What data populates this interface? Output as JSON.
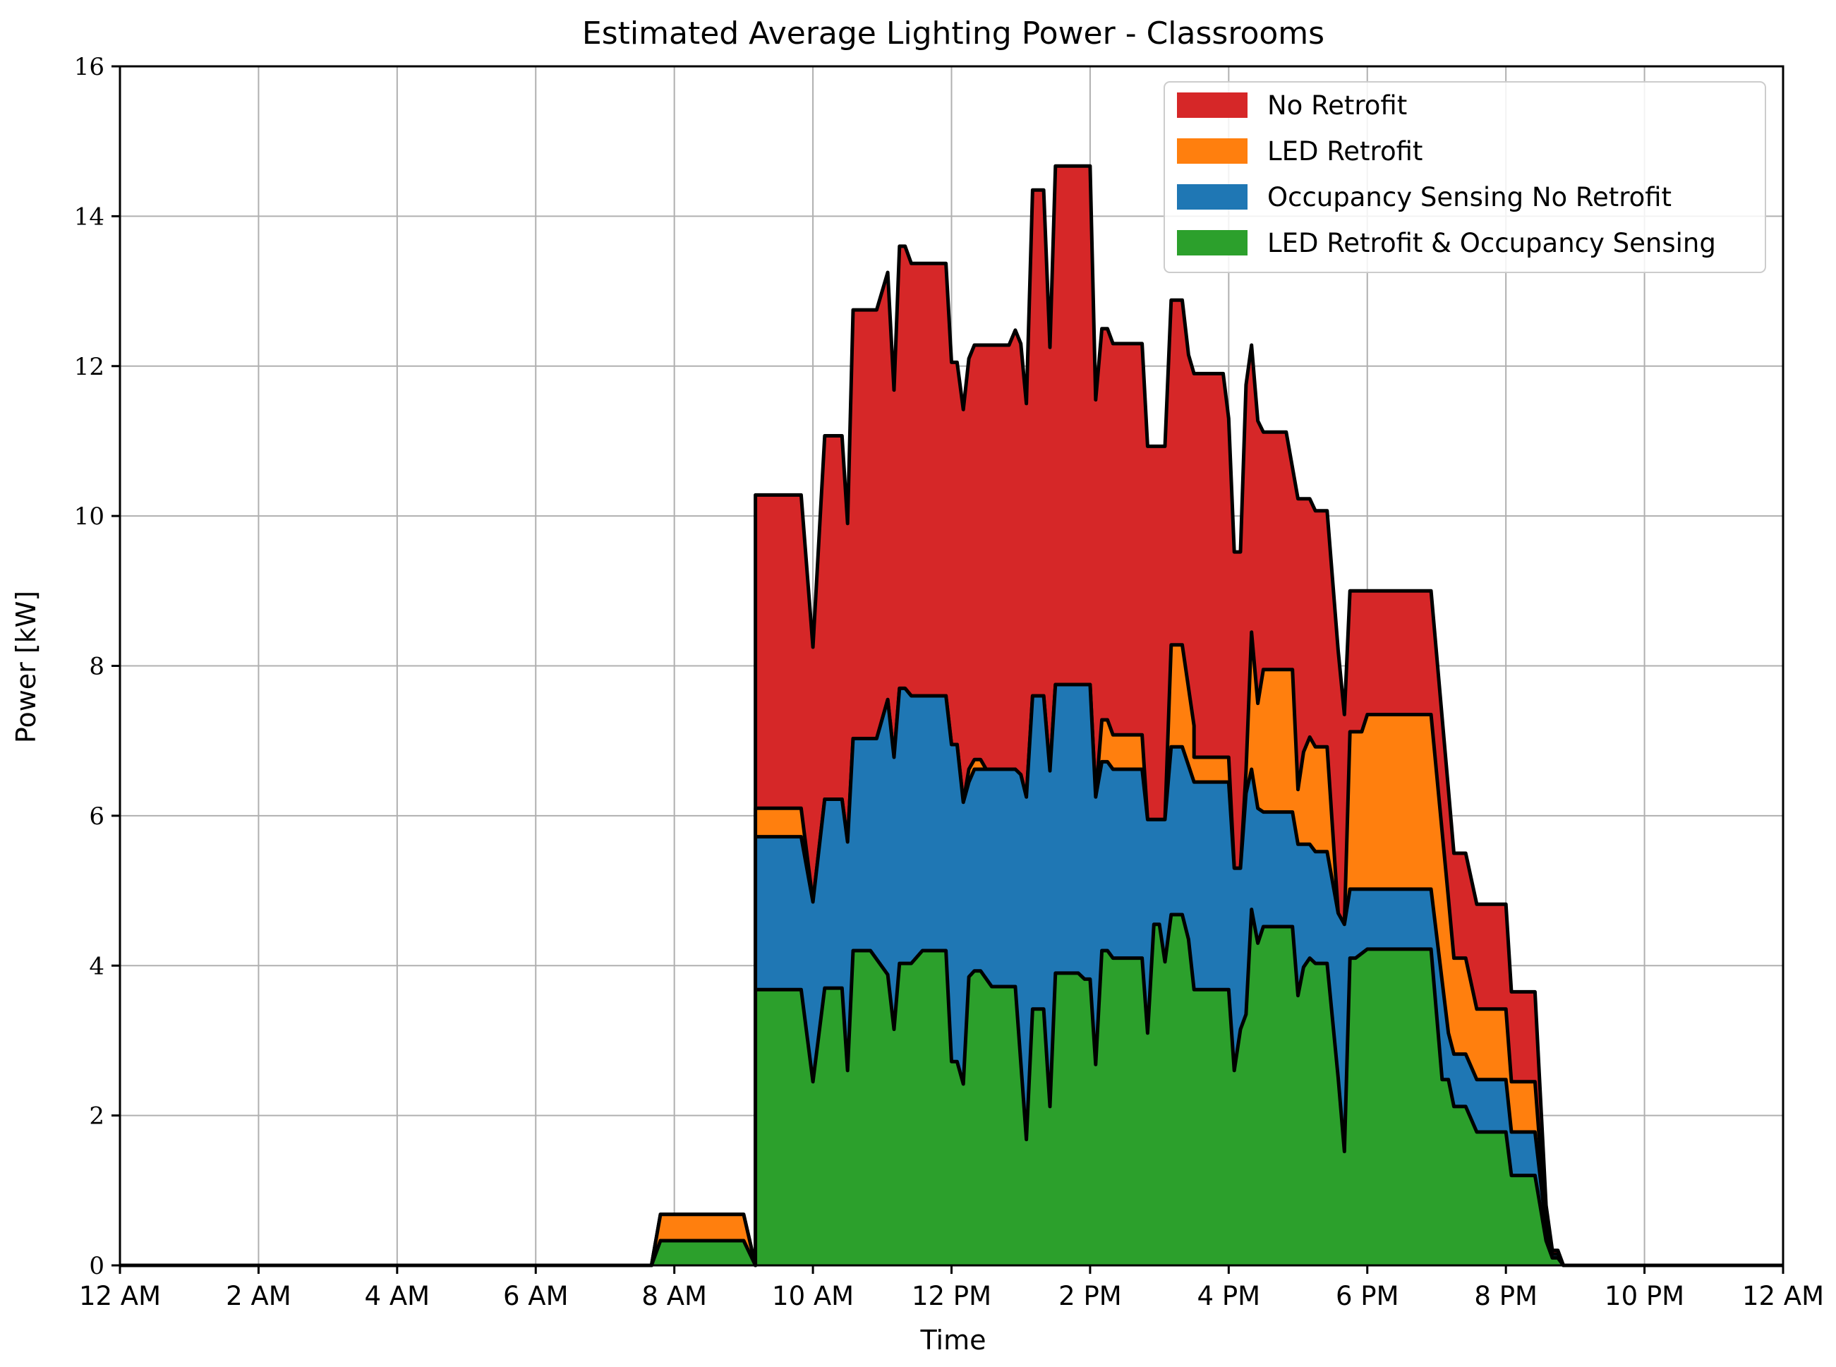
{
  "chart_data": {
    "type": "area",
    "stacked": false,
    "title": "Estimated Average Lighting Power - Classrooms",
    "xlabel": "Time",
    "ylabel": "Power [kW]",
    "xlim": [
      0,
      24
    ],
    "ylim": [
      0,
      16
    ],
    "x_ticks": [
      0,
      2,
      4,
      6,
      8,
      10,
      12,
      14,
      16,
      18,
      20,
      22,
      24
    ],
    "x_tick_labels": [
      "12 AM",
      "2 AM",
      "4 AM",
      "6 AM",
      "8 AM",
      "10 AM",
      "12 PM",
      "2 PM",
      "4 PM",
      "6 PM",
      "8 PM",
      "10 PM",
      "12 AM"
    ],
    "y_ticks": [
      0,
      2,
      4,
      6,
      8,
      10,
      12,
      14,
      16
    ],
    "y_tick_labels": [
      "0",
      "2",
      "4",
      "6",
      "8",
      "10",
      "12",
      "14",
      "16"
    ],
    "grid": true,
    "legend_position": "top-right",
    "series": [
      {
        "name": "No Retrofit",
        "color": "#d62728",
        "points": [
          [
            0,
            0
          ],
          [
            7.67,
            0
          ],
          [
            7.8,
            0.68
          ],
          [
            9.0,
            0.68
          ],
          [
            9.17,
            0
          ],
          [
            9.17,
            10.28
          ],
          [
            9.83,
            10.28
          ],
          [
            10.0,
            8.25
          ],
          [
            10.17,
            11.07
          ],
          [
            10.42,
            11.07
          ],
          [
            10.5,
            9.9
          ],
          [
            10.58,
            12.75
          ],
          [
            10.92,
            12.75
          ],
          [
            11.08,
            13.25
          ],
          [
            11.17,
            11.68
          ],
          [
            11.25,
            13.6
          ],
          [
            11.33,
            13.6
          ],
          [
            11.42,
            13.37
          ],
          [
            11.92,
            13.37
          ],
          [
            12.0,
            12.05
          ],
          [
            12.08,
            12.05
          ],
          [
            12.17,
            11.42
          ],
          [
            12.25,
            12.1
          ],
          [
            12.33,
            12.28
          ],
          [
            12.83,
            12.28
          ],
          [
            12.92,
            12.48
          ],
          [
            13.0,
            12.3
          ],
          [
            13.08,
            11.5
          ],
          [
            13.17,
            14.35
          ],
          [
            13.33,
            14.35
          ],
          [
            13.42,
            12.25
          ],
          [
            13.5,
            14.67
          ],
          [
            14.0,
            14.67
          ],
          [
            14.08,
            11.55
          ],
          [
            14.17,
            12.5
          ],
          [
            14.25,
            12.5
          ],
          [
            14.33,
            12.3
          ],
          [
            14.75,
            12.3
          ],
          [
            14.83,
            10.93
          ],
          [
            15.08,
            10.93
          ],
          [
            15.17,
            12.88
          ],
          [
            15.33,
            12.88
          ],
          [
            15.42,
            12.15
          ],
          [
            15.5,
            11.9
          ],
          [
            15.92,
            11.9
          ],
          [
            16.0,
            11.3
          ],
          [
            16.08,
            9.52
          ],
          [
            16.17,
            9.52
          ],
          [
            16.25,
            11.75
          ],
          [
            16.33,
            12.28
          ],
          [
            16.42,
            11.27
          ],
          [
            16.5,
            11.12
          ],
          [
            16.83,
            11.12
          ],
          [
            17.0,
            10.23
          ],
          [
            17.17,
            10.23
          ],
          [
            17.25,
            10.07
          ],
          [
            17.42,
            10.07
          ],
          [
            17.58,
            8.2
          ],
          [
            17.67,
            7.35
          ],
          [
            17.75,
            9.0
          ],
          [
            18.92,
            9.0
          ],
          [
            19.17,
            6.35
          ],
          [
            19.25,
            5.5
          ],
          [
            19.42,
            5.5
          ],
          [
            19.58,
            4.82
          ],
          [
            20.0,
            4.82
          ],
          [
            20.08,
            3.65
          ],
          [
            20.42,
            3.65
          ],
          [
            20.58,
            0.8
          ],
          [
            20.67,
            0.2
          ],
          [
            20.75,
            0.2
          ],
          [
            20.83,
            0
          ],
          [
            24,
            0
          ]
        ]
      },
      {
        "name": "LED Retrofit",
        "color": "#ff7f0e",
        "points": [
          [
            0,
            0
          ],
          [
            7.67,
            0
          ],
          [
            7.8,
            0.68
          ],
          [
            9.0,
            0.68
          ],
          [
            9.17,
            0
          ],
          [
            9.17,
            6.1
          ],
          [
            9.83,
            6.1
          ],
          [
            10.0,
            4.85
          ],
          [
            10.17,
            6.22
          ],
          [
            10.42,
            6.22
          ],
          [
            10.5,
            5.65
          ],
          [
            10.58,
            7.03
          ],
          [
            10.92,
            7.03
          ],
          [
            11.08,
            7.55
          ],
          [
            11.17,
            6.78
          ],
          [
            11.25,
            7.7
          ],
          [
            11.33,
            7.7
          ],
          [
            11.42,
            7.6
          ],
          [
            11.92,
            7.6
          ],
          [
            12.0,
            6.95
          ],
          [
            12.08,
            6.95
          ],
          [
            12.17,
            6.18
          ],
          [
            12.25,
            6.62
          ],
          [
            12.33,
            6.75
          ],
          [
            12.42,
            6.75
          ],
          [
            12.5,
            6.62
          ],
          [
            12.92,
            6.62
          ],
          [
            13.0,
            6.55
          ],
          [
            13.08,
            6.25
          ],
          [
            13.17,
            7.6
          ],
          [
            13.33,
            7.6
          ],
          [
            13.42,
            6.6
          ],
          [
            13.5,
            7.75
          ],
          [
            14.0,
            7.75
          ],
          [
            14.08,
            6.25
          ],
          [
            14.17,
            7.28
          ],
          [
            14.25,
            7.28
          ],
          [
            14.33,
            7.08
          ],
          [
            14.75,
            7.08
          ],
          [
            14.83,
            5.95
          ],
          [
            15.08,
            5.95
          ],
          [
            15.17,
            8.28
          ],
          [
            15.33,
            8.28
          ],
          [
            15.5,
            7.2
          ],
          [
            15.5,
            6.78
          ],
          [
            16.0,
            6.78
          ],
          [
            16.08,
            5.3
          ],
          [
            16.17,
            5.3
          ],
          [
            16.25,
            6.6
          ],
          [
            16.33,
            8.45
          ],
          [
            16.42,
            7.5
          ],
          [
            16.5,
            7.95
          ],
          [
            16.92,
            7.95
          ],
          [
            17.0,
            6.35
          ],
          [
            17.08,
            6.85
          ],
          [
            17.17,
            7.05
          ],
          [
            17.25,
            6.92
          ],
          [
            17.42,
            6.92
          ],
          [
            17.58,
            4.7
          ],
          [
            17.67,
            4.55
          ],
          [
            17.75,
            7.12
          ],
          [
            17.92,
            7.12
          ],
          [
            18.0,
            7.35
          ],
          [
            18.92,
            7.35
          ],
          [
            19.17,
            4.9
          ],
          [
            19.25,
            4.1
          ],
          [
            19.42,
            4.1
          ],
          [
            19.58,
            3.42
          ],
          [
            20.0,
            3.42
          ],
          [
            20.08,
            2.45
          ],
          [
            20.42,
            2.45
          ],
          [
            20.58,
            0.5
          ],
          [
            20.67,
            0.15
          ],
          [
            20.75,
            0.15
          ],
          [
            20.83,
            0
          ],
          [
            24,
            0
          ]
        ]
      },
      {
        "name": "Occupancy Sensing No Retrofit",
        "color": "#1f77b4",
        "points": [
          [
            0,
            0
          ],
          [
            7.67,
            0
          ],
          [
            7.8,
            0.33
          ],
          [
            9.0,
            0.33
          ],
          [
            9.17,
            0
          ],
          [
            9.17,
            5.72
          ],
          [
            9.83,
            5.72
          ],
          [
            10.0,
            4.85
          ],
          [
            10.17,
            6.22
          ],
          [
            10.42,
            6.22
          ],
          [
            10.5,
            5.65
          ],
          [
            10.58,
            7.03
          ],
          [
            10.92,
            7.03
          ],
          [
            11.08,
            7.55
          ],
          [
            11.17,
            6.78
          ],
          [
            11.25,
            7.7
          ],
          [
            11.33,
            7.7
          ],
          [
            11.42,
            7.6
          ],
          [
            11.92,
            7.6
          ],
          [
            12.0,
            6.95
          ],
          [
            12.08,
            6.95
          ],
          [
            12.17,
            6.18
          ],
          [
            12.25,
            6.45
          ],
          [
            12.33,
            6.62
          ],
          [
            12.92,
            6.62
          ],
          [
            13.0,
            6.55
          ],
          [
            13.08,
            6.25
          ],
          [
            13.17,
            7.6
          ],
          [
            13.33,
            7.6
          ],
          [
            13.42,
            6.6
          ],
          [
            13.5,
            7.75
          ],
          [
            14.0,
            7.75
          ],
          [
            14.08,
            6.25
          ],
          [
            14.17,
            6.72
          ],
          [
            14.25,
            6.72
          ],
          [
            14.33,
            6.62
          ],
          [
            14.75,
            6.62
          ],
          [
            14.83,
            5.95
          ],
          [
            15.08,
            5.95
          ],
          [
            15.17,
            6.92
          ],
          [
            15.33,
            6.92
          ],
          [
            15.5,
            6.45
          ],
          [
            16.0,
            6.45
          ],
          [
            16.08,
            5.3
          ],
          [
            16.17,
            5.3
          ],
          [
            16.25,
            6.3
          ],
          [
            16.33,
            6.62
          ],
          [
            16.42,
            6.1
          ],
          [
            16.5,
            6.05
          ],
          [
            16.92,
            6.05
          ],
          [
            17.0,
            5.62
          ],
          [
            17.17,
            5.62
          ],
          [
            17.25,
            5.52
          ],
          [
            17.42,
            5.52
          ],
          [
            17.58,
            4.7
          ],
          [
            17.67,
            4.55
          ],
          [
            17.75,
            5.02
          ],
          [
            18.92,
            5.02
          ],
          [
            19.17,
            3.1
          ],
          [
            19.25,
            2.82
          ],
          [
            19.42,
            2.82
          ],
          [
            19.58,
            2.48
          ],
          [
            20.0,
            2.48
          ],
          [
            20.08,
            1.78
          ],
          [
            20.42,
            1.78
          ],
          [
            20.58,
            0.5
          ],
          [
            20.67,
            0.15
          ],
          [
            20.75,
            0.15
          ],
          [
            20.83,
            0
          ],
          [
            24,
            0
          ]
        ]
      },
      {
        "name": "LED Retrofit & Occupancy Sensing",
        "color": "#2ca02c",
        "points": [
          [
            0,
            0
          ],
          [
            7.67,
            0
          ],
          [
            7.8,
            0.33
          ],
          [
            9.0,
            0.33
          ],
          [
            9.17,
            0
          ],
          [
            9.17,
            3.68
          ],
          [
            9.83,
            3.68
          ],
          [
            10.0,
            2.45
          ],
          [
            10.17,
            3.7
          ],
          [
            10.42,
            3.7
          ],
          [
            10.5,
            2.6
          ],
          [
            10.58,
            4.2
          ],
          [
            10.83,
            4.2
          ],
          [
            11.08,
            3.88
          ],
          [
            11.17,
            3.15
          ],
          [
            11.25,
            4.03
          ],
          [
            11.42,
            4.03
          ],
          [
            11.58,
            4.2
          ],
          [
            11.92,
            4.2
          ],
          [
            12.0,
            2.72
          ],
          [
            12.08,
            2.72
          ],
          [
            12.17,
            2.42
          ],
          [
            12.25,
            3.85
          ],
          [
            12.33,
            3.93
          ],
          [
            12.42,
            3.93
          ],
          [
            12.58,
            3.72
          ],
          [
            12.92,
            3.72
          ],
          [
            13.08,
            1.68
          ],
          [
            13.17,
            3.42
          ],
          [
            13.33,
            3.42
          ],
          [
            13.42,
            2.12
          ],
          [
            13.5,
            3.9
          ],
          [
            13.83,
            3.9
          ],
          [
            13.92,
            3.82
          ],
          [
            14.0,
            3.82
          ],
          [
            14.08,
            2.68
          ],
          [
            14.17,
            4.2
          ],
          [
            14.25,
            4.2
          ],
          [
            14.33,
            4.1
          ],
          [
            14.75,
            4.1
          ],
          [
            14.83,
            3.1
          ],
          [
            14.92,
            4.55
          ],
          [
            15.0,
            4.55
          ],
          [
            15.08,
            4.05
          ],
          [
            15.17,
            4.68
          ],
          [
            15.33,
            4.68
          ],
          [
            15.42,
            4.35
          ],
          [
            15.5,
            3.68
          ],
          [
            16.0,
            3.68
          ],
          [
            16.08,
            2.6
          ],
          [
            16.17,
            3.15
          ],
          [
            16.25,
            3.35
          ],
          [
            16.33,
            4.75
          ],
          [
            16.42,
            4.3
          ],
          [
            16.5,
            4.52
          ],
          [
            16.92,
            4.52
          ],
          [
            17.0,
            3.6
          ],
          [
            17.08,
            3.98
          ],
          [
            17.17,
            4.1
          ],
          [
            17.25,
            4.03
          ],
          [
            17.42,
            4.03
          ],
          [
            17.58,
            2.5
          ],
          [
            17.67,
            1.52
          ],
          [
            17.75,
            4.1
          ],
          [
            17.83,
            4.1
          ],
          [
            18.0,
            4.22
          ],
          [
            18.92,
            4.22
          ],
          [
            19.08,
            2.48
          ],
          [
            19.17,
            2.48
          ],
          [
            19.25,
            2.12
          ],
          [
            19.42,
            2.12
          ],
          [
            19.58,
            1.78
          ],
          [
            20.0,
            1.78
          ],
          [
            20.08,
            1.2
          ],
          [
            20.42,
            1.2
          ],
          [
            20.58,
            0.33
          ],
          [
            20.67,
            0.1
          ],
          [
            20.75,
            0.1
          ],
          [
            20.83,
            0
          ],
          [
            24,
            0
          ]
        ]
      }
    ]
  }
}
